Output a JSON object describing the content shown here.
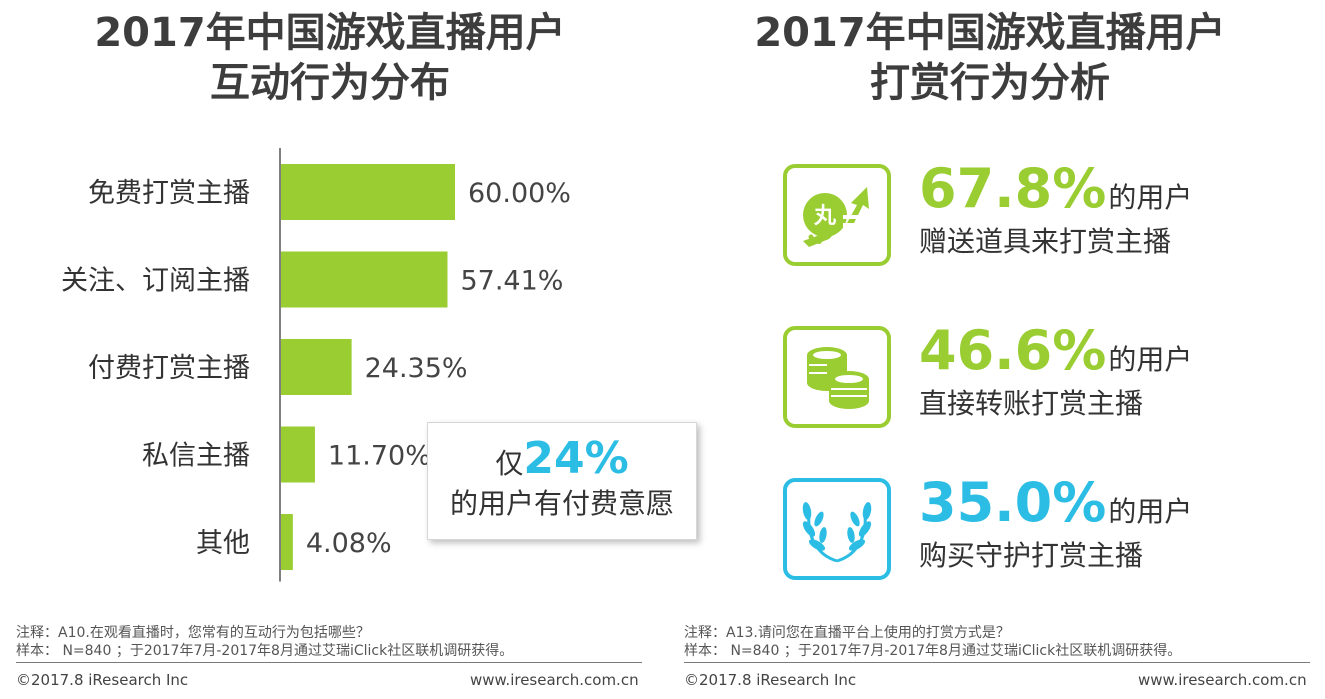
{
  "left_title": {
    "line1": "2017年中国游戏直播用户",
    "line2": "互动行为分布"
  },
  "right_title": {
    "line1": "2017年中国游戏直播用户",
    "line2": "打赏行为分析"
  },
  "chart_data": {
    "type": "bar",
    "orientation": "horizontal",
    "categories": [
      "免费打赏主播",
      "关注、订阅主播",
      "付费打赏主播",
      "私信主播",
      "其他"
    ],
    "values": [
      60.0,
      57.41,
      24.35,
      11.7,
      4.08
    ],
    "labels": [
      "60.00%",
      "57.41%",
      "24.35%",
      "11.70%",
      "4.08%"
    ],
    "xlim": [
      0,
      100
    ],
    "unit": "%",
    "bar_color": "#9acd32",
    "grid": false
  },
  "callout": {
    "prefix": "仅",
    "value": "24%",
    "line2": "的用户有付费意愿"
  },
  "stats": [
    {
      "value": "67.8%",
      "suffix": "的用户",
      "desc": "赠送道具来打赏主播",
      "color": "#9acd32",
      "icon": "gift-arrow-icon"
    },
    {
      "value": "46.6%",
      "suffix": "的用户",
      "desc": "直接转账打赏主播",
      "color": "#9acd32",
      "icon": "coins-icon"
    },
    {
      "value": "35.0%",
      "suffix": "的用户",
      "desc": "购买守护打赏主播",
      "color": "#2bbde4",
      "icon": "laurel-icon"
    }
  ],
  "notes": {
    "left": {
      "note": "注释：A10.在观看直播时，您常有的互动行为包括哪些？",
      "sample": "样本： N=840 ；于2017年7月-2017年8月通过艾瑞iClick社区联机调研获得。"
    },
    "right": {
      "note": "注释：A13.请问您在直播平台上使用的打赏方式是？",
      "sample": "样本： N=840 ；于2017年7月-2017年8月通过艾瑞iClick社区联机调研获得。"
    }
  },
  "footer": {
    "left_copyright": "©2017.8 iResearch Inc",
    "left_url": "www.iresearch.com.cn",
    "right_copyright": "©2017.8 iResearch Inc",
    "right_url": "www.iresearch.com.cn"
  },
  "colors": {
    "green": "#9acd32",
    "blue": "#2bbde4",
    "title": "#3d3d3d"
  }
}
